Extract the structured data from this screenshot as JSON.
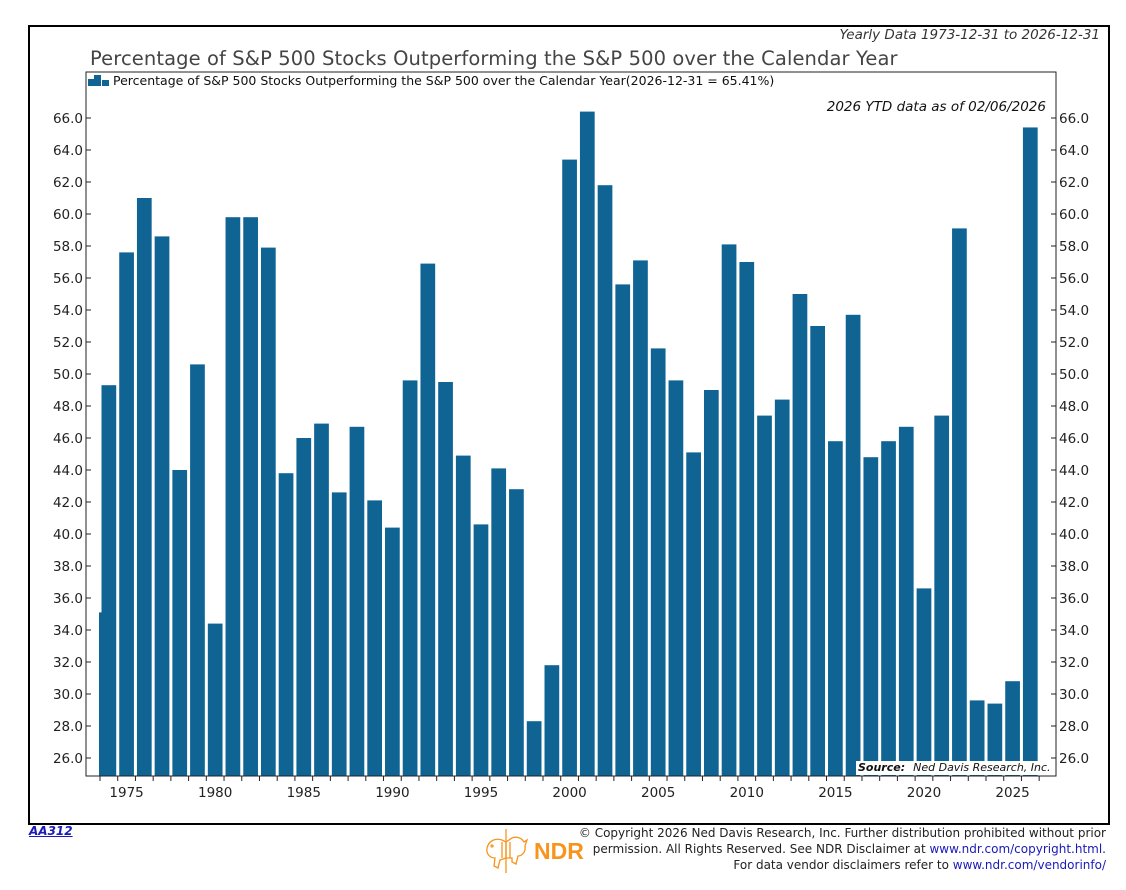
{
  "header": {
    "range_label": "Yearly Data 1973-12-31 to 2026-12-31",
    "title": "Percentage of S&P 500 Stocks Outperforming the S&P 500 over the Calendar Year",
    "legend_label": "Percentage of S&P 500 Stocks Outperforming the S&P 500 over the Calendar Year(2026-12-31 = 65.41%)",
    "ytd_note": "2026 YTD data as of 02/06/2026"
  },
  "source": {
    "label": "Source:",
    "value": "Ned Davis Research, Inc."
  },
  "footer": {
    "chart_code": "AA312",
    "logo_text": "NDR",
    "copyright_line1": "© Copyright 2026 Ned Davis Research, Inc. Further distribution prohibited without prior",
    "copyright_line2_prefix": "permission. All Rights Reserved. See NDR Disclaimer at ",
    "copyright_link": "www.ndr.com/copyright.html.",
    "vendor_prefix": "For data vendor disclaimers refer to ",
    "vendor_link": "www.ndr.com/vendorinfo/"
  },
  "colors": {
    "bar": "#0f6494",
    "logo": "#f7941d"
  },
  "chart_data": {
    "type": "bar",
    "title": "Percentage of S&P 500 Stocks Outperforming the S&P 500 over the Calendar Year",
    "xlabel": "",
    "ylabel": "",
    "ylim": [
      25.0,
      67.0
    ],
    "yticks": [
      26.0,
      28.0,
      30.0,
      32.0,
      34.0,
      36.0,
      38.0,
      40.0,
      42.0,
      44.0,
      46.0,
      48.0,
      50.0,
      52.0,
      54.0,
      56.0,
      58.0,
      60.0,
      62.0,
      64.0,
      66.0
    ],
    "xticks": [
      1975,
      1980,
      1985,
      1990,
      1995,
      2000,
      2005,
      2010,
      2015,
      2020,
      2025
    ],
    "xlim": [
      1972.6,
      2026.8
    ],
    "grid": false,
    "legend_position": "top-left",
    "categories": [
      1973,
      1974,
      1975,
      1976,
      1977,
      1978,
      1979,
      1980,
      1981,
      1982,
      1983,
      1984,
      1985,
      1986,
      1987,
      1988,
      1989,
      1990,
      1991,
      1992,
      1993,
      1994,
      1995,
      1996,
      1997,
      1998,
      1999,
      2000,
      2001,
      2002,
      2003,
      2004,
      2005,
      2006,
      2007,
      2008,
      2009,
      2010,
      2011,
      2012,
      2013,
      2014,
      2015,
      2016,
      2017,
      2018,
      2019,
      2020,
      2021,
      2022,
      2023,
      2024,
      2025,
      2026
    ],
    "values": [
      35.1,
      49.3,
      57.6,
      61.0,
      58.6,
      44.0,
      50.6,
      34.4,
      59.8,
      59.8,
      57.9,
      43.8,
      46.0,
      46.9,
      42.6,
      46.7,
      42.1,
      40.4,
      49.6,
      56.9,
      49.5,
      44.9,
      40.6,
      44.1,
      42.8,
      28.3,
      31.8,
      63.4,
      66.4,
      61.8,
      55.6,
      57.1,
      51.6,
      49.6,
      45.1,
      49.0,
      58.1,
      57.0,
      47.4,
      48.4,
      55.0,
      53.0,
      45.8,
      53.7,
      44.8,
      45.8,
      46.7,
      36.6,
      47.4,
      59.1,
      29.6,
      29.4,
      30.8,
      65.41
    ],
    "series": [
      {
        "name": "Percentage of S&P 500 Stocks Outperforming the S&P 500 over the Calendar Year",
        "last_value_label": "2026-12-31 = 65.41%"
      }
    ]
  }
}
